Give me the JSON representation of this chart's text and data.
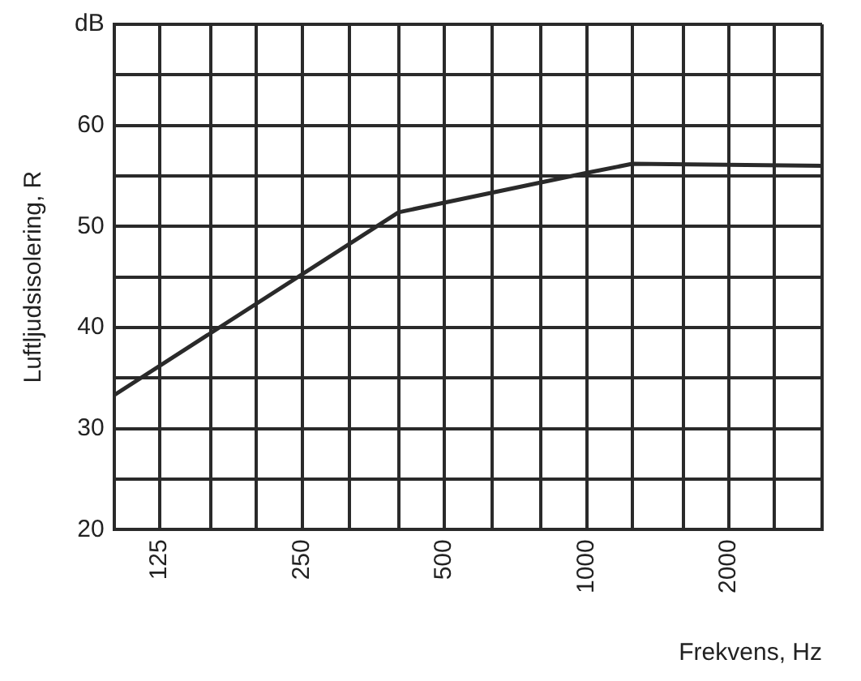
{
  "chart_data": {
    "type": "line",
    "xlabel": "Frekvens, Hz",
    "ylabel": "Luftljudsisolering, R",
    "x": [
      100,
      400,
      1000,
      1250,
      3150
    ],
    "series": [
      {
        "color": "#2a2a2a",
        "values": [
          33.3,
          51.4,
          55.3,
          56.2,
          56
        ]
      }
    ],
    "log": "x",
    "xlim": [
      100,
      3150
    ],
    "xticks": [
      {
        "value": 100,
        "label": null
      },
      125,
      {
        "value": 160,
        "label": null
      },
      {
        "value": 200,
        "label": null
      },
      250,
      {
        "value": 315,
        "label": null
      },
      {
        "value": 400,
        "label": null
      },
      500,
      {
        "value": 630,
        "label": null
      },
      {
        "value": 800,
        "label": null
      },
      1000,
      {
        "value": 1250,
        "label": null
      },
      {
        "value": 1600,
        "label": null
      },
      2000,
      {
        "value": 2500,
        "label": null
      },
      {
        "value": 3150,
        "label": null
      }
    ],
    "ylim": [
      20,
      70
    ],
    "yticks": [
      20,
      {
        "value": 25,
        "label": null
      },
      30,
      {
        "value": 35,
        "label": null
      },
      40,
      {
        "value": 45,
        "label": null
      },
      50,
      {
        "value": 55,
        "label": null
      },
      60,
      {
        "value": 65,
        "label": null
      },
      {
        "value": 70,
        "label": "dB"
      }
    ],
    "grid": true,
    "legend": false,
    "marker": "none",
    "line_style": "solid"
  }
}
